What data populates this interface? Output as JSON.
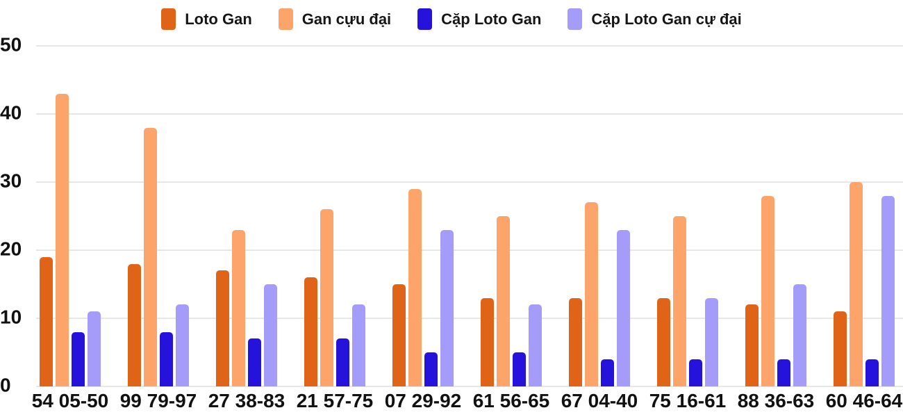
{
  "chart_data": {
    "type": "bar",
    "title": "",
    "xlabel": "",
    "ylabel": "",
    "categories": [
      "54 05-50",
      "99 79-97",
      "27 38-83",
      "21 57-75",
      "07 29-92",
      "61 56-65",
      "67 04-40",
      "75 16-61",
      "88 36-63",
      "60 46-64"
    ],
    "series": [
      {
        "name": "Loto Gan",
        "color": "#E06418",
        "values": [
          19,
          18,
          17,
          16,
          15,
          13,
          13,
          13,
          12,
          11
        ]
      },
      {
        "name": "Gan cựu đại",
        "color": "#FCA469",
        "values": [
          43,
          38,
          23,
          26,
          29,
          25,
          27,
          25,
          28,
          30
        ]
      },
      {
        "name": "Cặp Loto Gan",
        "color": "#2513DB",
        "values": [
          8,
          8,
          7,
          7,
          5,
          5,
          4,
          4,
          4,
          4
        ]
      },
      {
        "name": "Cặp Loto Gan cự đại",
        "color": "#A59BF8",
        "values": [
          11,
          12,
          15,
          12,
          23,
          12,
          23,
          13,
          15,
          28
        ]
      }
    ],
    "y_ticks": [
      0,
      10,
      20,
      30,
      40,
      50
    ],
    "ylim": [
      0,
      50
    ],
    "grid": true,
    "legend_position": "top",
    "background_color": "#FFFFFF",
    "gridline_color": "#E7E7E7",
    "label_color": "#111111"
  }
}
